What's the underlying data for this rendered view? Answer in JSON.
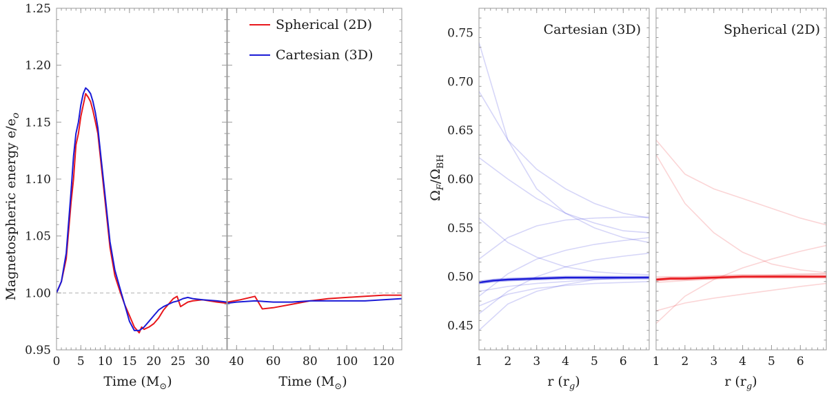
{
  "chart_data": [
    {
      "type": "line",
      "ylabel": "Magnetospheric energy e/e",
      "ylabel_sub": "o",
      "ylim": [
        0.95,
        1.25
      ],
      "yticks": [
        "0.95",
        "1.00",
        "1.05",
        "1.10",
        "1.15",
        "1.20",
        "1.25"
      ],
      "reference_line": 1.0,
      "legend": [
        {
          "label": "Spherical (2D)",
          "color": "#e8161b"
        },
        {
          "label": "Cartesian (3D)",
          "color": "#1a1ad6"
        }
      ],
      "panels": [
        {
          "xlabel": "Time (M",
          "xlabel_sub": "⊙",
          "xlim": [
            0,
            35
          ],
          "xticks": [
            "0",
            "5",
            "10",
            "15",
            "20",
            "25",
            "30"
          ],
          "series": [
            {
              "name": "Spherical (2D)",
              "color": "#e8161b",
              "x": [
                0,
                1,
                2,
                3,
                3.5,
                4,
                4.5,
                5,
                5.5,
                6,
                6.5,
                7,
                7.5,
                8,
                8.5,
                9,
                10,
                11,
                12,
                13,
                14,
                15,
                16,
                17,
                17.5,
                18,
                19,
                20,
                21,
                22,
                23,
                24,
                24.8,
                25.5,
                27,
                28,
                30,
                33,
                35
              ],
              "y": [
                1.0,
                1.01,
                1.03,
                1.08,
                1.1,
                1.13,
                1.14,
                1.155,
                1.165,
                1.175,
                1.172,
                1.168,
                1.16,
                1.15,
                1.14,
                1.12,
                1.08,
                1.04,
                1.015,
                1.002,
                0.99,
                0.98,
                0.97,
                0.965,
                0.97,
                0.968,
                0.97,
                0.973,
                0.978,
                0.985,
                0.99,
                0.995,
                0.997,
                0.988,
                0.992,
                0.993,
                0.994,
                0.992,
                0.991
              ]
            },
            {
              "name": "Cartesian (3D)",
              "color": "#1a1ad6",
              "x": [
                0,
                1,
                2,
                3,
                3.5,
                4,
                4.5,
                5,
                5.5,
                6,
                6.5,
                7,
                7.5,
                8,
                8.5,
                9,
                10,
                11,
                12,
                13,
                14,
                15,
                16,
                17,
                18,
                19,
                20,
                21,
                22,
                23,
                24,
                25,
                26,
                27,
                28,
                30,
                33,
                35
              ],
              "y": [
                1.0,
                1.01,
                1.035,
                1.09,
                1.12,
                1.14,
                1.15,
                1.165,
                1.175,
                1.18,
                1.178,
                1.175,
                1.168,
                1.158,
                1.145,
                1.125,
                1.085,
                1.045,
                1.02,
                1.005,
                0.99,
                0.975,
                0.967,
                0.967,
                0.97,
                0.975,
                0.98,
                0.985,
                0.988,
                0.99,
                0.992,
                0.993,
                0.995,
                0.996,
                0.995,
                0.994,
                0.993,
                0.992
              ]
            }
          ]
        },
        {
          "xlabel": "Time (M",
          "xlabel_sub": "⊙",
          "xlim": [
            35,
            130
          ],
          "xticks": [
            "40",
            "60",
            "80",
            "100",
            "120"
          ],
          "series": [
            {
              "name": "Spherical (2D)",
              "color": "#e8161b",
              "x": [
                35,
                42,
                50,
                54,
                60,
                70,
                80,
                90,
                100,
                110,
                120,
                130
              ],
              "y": [
                0.992,
                0.994,
                0.997,
                0.986,
                0.987,
                0.99,
                0.993,
                0.995,
                0.996,
                0.997,
                0.998,
                0.998
              ]
            },
            {
              "name": "Cartesian (3D)",
              "color": "#1a1ad6",
              "x": [
                35,
                40,
                50,
                60,
                70,
                80,
                90,
                100,
                110,
                120,
                130
              ],
              "y": [
                0.991,
                0.992,
                0.993,
                0.992,
                0.992,
                0.993,
                0.993,
                0.993,
                0.993,
                0.994,
                0.995
              ]
            }
          ]
        }
      ]
    },
    {
      "type": "line",
      "ylabel": "Ω",
      "ylabel_sub1": "F",
      "ylabel_mid": "/Ω",
      "ylabel_sub2": "BH",
      "ylim": [
        0.425,
        0.775
      ],
      "yticks": [
        "0.45",
        "0.50",
        "0.55",
        "0.60",
        "0.65",
        "0.70",
        "0.75"
      ],
      "panels": [
        {
          "label": "Cartesian (3D)",
          "color": "#1a1ad6",
          "xlabel": "r (r",
          "xlabel_sub": "g",
          "xlim": [
            1,
            6.9
          ],
          "xticks": [
            "1",
            "2",
            "3",
            "4",
            "5",
            "6"
          ],
          "faint_series": [
            {
              "x": [
                1,
                2,
                3,
                4,
                5,
                6,
                6.9
              ],
              "y": [
                0.74,
                0.64,
                0.59,
                0.565,
                0.55,
                0.54,
                0.535
              ]
            },
            {
              "x": [
                1,
                2,
                3,
                4,
                5,
                6,
                6.9
              ],
              "y": [
                0.69,
                0.64,
                0.61,
                0.59,
                0.575,
                0.565,
                0.56
              ]
            },
            {
              "x": [
                1,
                2,
                3,
                4,
                5,
                6,
                6.9
              ],
              "y": [
                0.622,
                0.6,
                0.58,
                0.565,
                0.555,
                0.547,
                0.545
              ]
            },
            {
              "x": [
                1,
                2,
                3,
                4,
                5,
                6,
                6.9
              ],
              "y": [
                0.56,
                0.535,
                0.52,
                0.51,
                0.505,
                0.503,
                0.502
              ]
            },
            {
              "x": [
                1,
                2,
                3,
                4,
                5,
                6,
                6.9
              ],
              "y": [
                0.518,
                0.54,
                0.552,
                0.558,
                0.56,
                0.561,
                0.561
              ]
            },
            {
              "x": [
                1,
                2,
                3,
                4,
                5,
                6,
                6.9
              ],
              "y": [
                0.48,
                0.503,
                0.518,
                0.527,
                0.533,
                0.537,
                0.54
              ]
            },
            {
              "x": [
                1,
                2,
                3,
                4,
                5,
                6,
                6.9
              ],
              "y": [
                0.462,
                0.485,
                0.5,
                0.51,
                0.517,
                0.521,
                0.524
              ]
            },
            {
              "x": [
                1,
                2,
                3,
                4,
                5,
                6,
                6.9
              ],
              "y": [
                0.445,
                0.472,
                0.485,
                0.492,
                0.497,
                0.499,
                0.5
              ]
            },
            {
              "x": [
                1,
                2,
                3,
                4,
                5,
                6,
                6.9
              ],
              "y": [
                0.47,
                0.482,
                0.488,
                0.491,
                0.493,
                0.494,
                0.495
              ]
            },
            {
              "x": [
                1,
                2,
                3,
                4,
                5,
                6,
                6.9
              ],
              "y": [
                0.485,
                0.49,
                0.493,
                0.495,
                0.497,
                0.498,
                0.499
              ]
            }
          ],
          "mean_series": {
            "x": [
              1,
              1.5,
              2,
              3,
              4,
              5,
              6,
              6.9
            ],
            "y": [
              0.494,
              0.496,
              0.497,
              0.498,
              0.499,
              0.499,
              0.499,
              0.499
            ]
          }
        },
        {
          "label": "Spherical (2D)",
          "color": "#e8161b",
          "xlabel": "r (r",
          "xlabel_sub": "g",
          "xlim": [
            1,
            6.9
          ],
          "xticks": [
            "1",
            "2",
            "3",
            "4",
            "5",
            "6"
          ],
          "faint_series": [
            {
              "x": [
                1,
                2,
                3,
                4,
                5,
                6,
                6.9
              ],
              "y": [
                0.64,
                0.605,
                0.59,
                0.58,
                0.57,
                0.56,
                0.553
              ]
            },
            {
              "x": [
                1,
                2,
                3,
                4,
                5,
                6,
                6.9
              ],
              "y": [
                0.625,
                0.575,
                0.545,
                0.525,
                0.513,
                0.507,
                0.504
              ]
            },
            {
              "x": [
                1,
                2,
                3,
                4,
                5,
                6,
                6.9
              ],
              "y": [
                0.452,
                0.48,
                0.497,
                0.509,
                0.518,
                0.526,
                0.532
              ]
            },
            {
              "x": [
                1,
                2,
                3,
                4,
                5,
                6,
                6.9
              ],
              "y": [
                0.465,
                0.473,
                0.478,
                0.482,
                0.486,
                0.49,
                0.493
              ]
            },
            {
              "x": [
                1,
                2,
                3,
                4,
                5,
                6,
                6.9
              ],
              "y": [
                0.494,
                0.496,
                0.498,
                0.5,
                0.501,
                0.502,
                0.503
              ]
            },
            {
              "x": [
                1,
                2,
                3,
                4,
                5,
                6,
                6.9
              ],
              "y": [
                0.5,
                0.5,
                0.501,
                0.502,
                0.502,
                0.503,
                0.503
              ]
            }
          ],
          "mean_series": {
            "x": [
              1,
              1.5,
              2,
              3,
              4,
              5,
              6,
              6.9
            ],
            "y": [
              0.497,
              0.498,
              0.498,
              0.499,
              0.5,
              0.5,
              0.5,
              0.5
            ]
          }
        }
      ]
    }
  ]
}
